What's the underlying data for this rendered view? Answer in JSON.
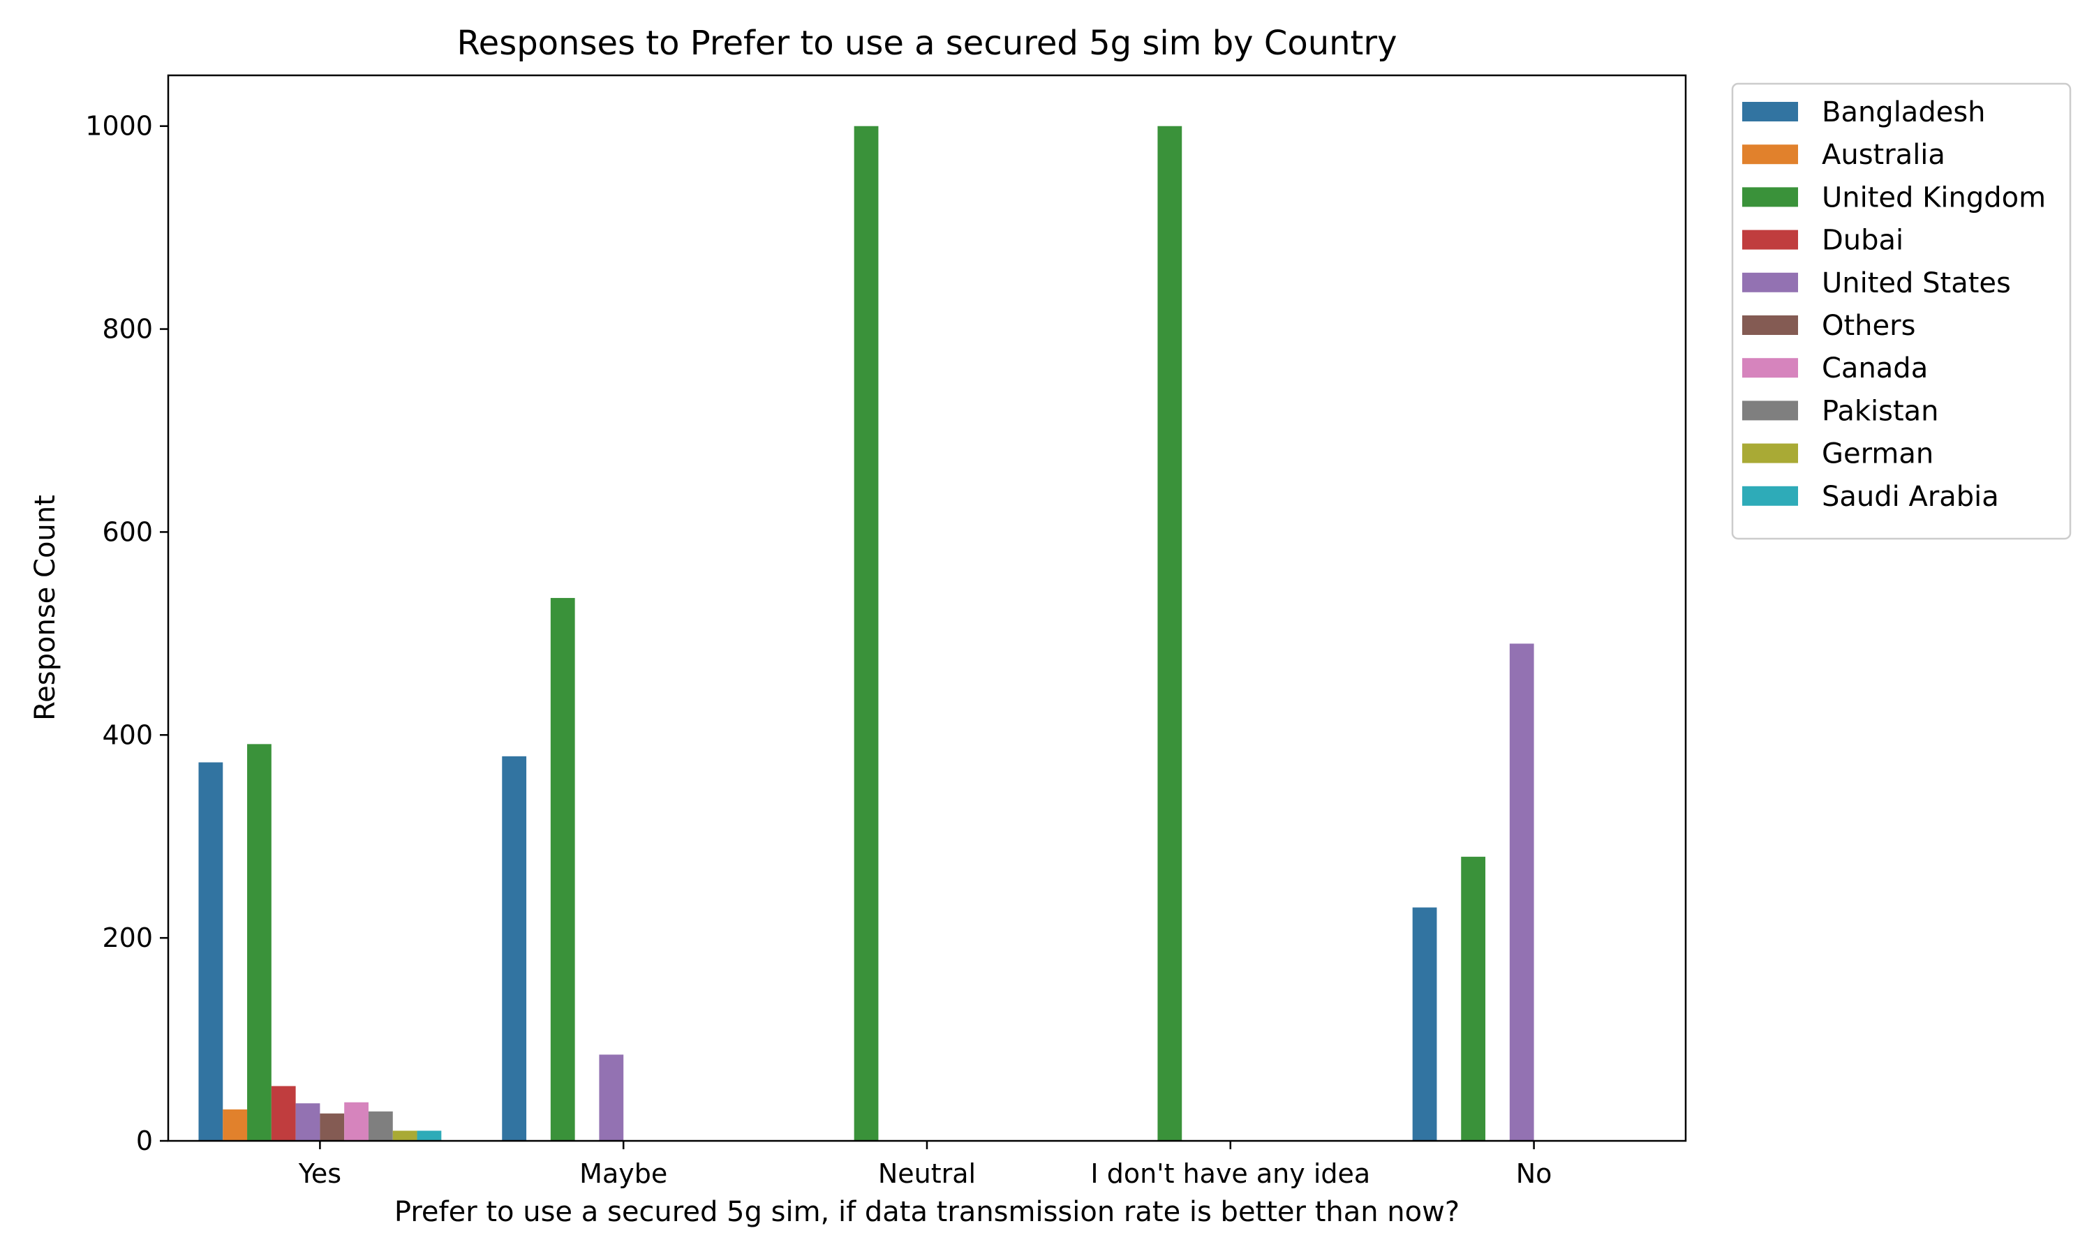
{
  "chart_data": {
    "type": "bar",
    "title": "Responses to Prefer to use a secured 5g sim by Country",
    "xlabel": "Prefer to use a secured 5g sim, if data transmission rate is better than now?",
    "ylabel": "Response Count",
    "categories": [
      "Yes",
      "Maybe",
      "Neutral",
      "I don't have any idea",
      "No"
    ],
    "ylim": [
      0,
      1050
    ],
    "yticks": [
      0,
      200,
      400,
      600,
      800,
      1000
    ],
    "grid": false,
    "legend_position": "outside-top-right",
    "series": [
      {
        "name": "Bangladesh",
        "color": "#3274a1",
        "values": [
          373,
          379,
          null,
          null,
          230
        ]
      },
      {
        "name": "Australia",
        "color": "#e1812c",
        "values": [
          31,
          null,
          null,
          null,
          null
        ]
      },
      {
        "name": "United Kingdom",
        "color": "#3a923a",
        "values": [
          391,
          535,
          1000,
          1000,
          280
        ]
      },
      {
        "name": "Dubai",
        "color": "#c03d3e",
        "values": [
          54,
          null,
          null,
          null,
          null
        ]
      },
      {
        "name": "United States",
        "color": "#9372b2",
        "values": [
          37,
          85,
          null,
          null,
          490
        ]
      },
      {
        "name": "Others",
        "color": "#845b53",
        "values": [
          27,
          null,
          null,
          null,
          null
        ]
      },
      {
        "name": "Canada",
        "color": "#d684bd",
        "values": [
          38,
          null,
          null,
          null,
          null
        ]
      },
      {
        "name": "Pakistan",
        "color": "#7f7f7f",
        "values": [
          29,
          null,
          null,
          null,
          null
        ]
      },
      {
        "name": "German",
        "color": "#a9aa35",
        "values": [
          10,
          null,
          null,
          null,
          null
        ]
      },
      {
        "name": "Saudi Arabia",
        "color": "#2eabb8",
        "values": [
          10,
          null,
          null,
          null,
          null
        ]
      }
    ]
  }
}
